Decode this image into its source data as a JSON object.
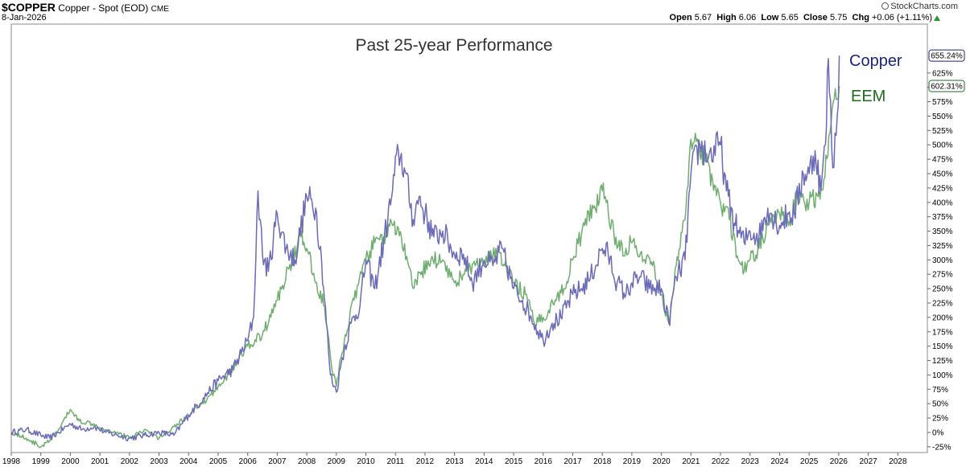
{
  "header": {
    "symbol": "$COPPER",
    "description": "Copper - Spot (EOD)",
    "exchange": "CME",
    "date": "8-Jan-2026",
    "brand": "StockCharts.com",
    "open_label": "Open",
    "open": "5.67",
    "high_label": "High",
    "high": "6.06",
    "low_label": "Low",
    "low": "5.65",
    "close_label": "Close",
    "close": "5.75",
    "chg_label": "Chg",
    "chg": "+0.06 (+1.11%)",
    "chg_direction": "up"
  },
  "chart_data": {
    "type": "line",
    "title": "Past 25-year Performance",
    "ylabel": "",
    "xlabel": "",
    "ylim": [
      -35,
      710
    ],
    "xlim": [
      1998,
      2029
    ],
    "x_ticks": [
      "1998",
      "1999",
      "2000",
      "2001",
      "2002",
      "2003",
      "2004",
      "2005",
      "2006",
      "2007",
      "2008",
      "2009",
      "2010",
      "2011",
      "2012",
      "2013",
      "2014",
      "2015",
      "2016",
      "2017",
      "2018",
      "2019",
      "2020",
      "2021",
      "2022",
      "2023",
      "2024",
      "2025",
      "2026",
      "2027",
      "2028"
    ],
    "y_ticks": [
      "-25%",
      "0%",
      "25%",
      "50%",
      "75%",
      "100%",
      "125%",
      "150%",
      "175%",
      "200%",
      "225%",
      "250%",
      "275%",
      "300%",
      "325%",
      "350%",
      "375%",
      "400%",
      "425%",
      "450%",
      "475%",
      "500%",
      "525%",
      "550%",
      "575%",
      "600%",
      "625%"
    ],
    "y_tick_values": [
      -25,
      0,
      25,
      50,
      75,
      100,
      125,
      150,
      175,
      200,
      225,
      250,
      275,
      300,
      325,
      350,
      375,
      400,
      425,
      450,
      475,
      500,
      525,
      550,
      575,
      600,
      625
    ],
    "series": [
      {
        "name": "Copper",
        "color": "#6b6bb8",
        "label_color": "#1a237e",
        "last_value_label": "655.24%",
        "last_value": 655.24,
        "x": [
          1998.0,
          1998.5,
          1999.0,
          1999.3,
          1999.6,
          2000.0,
          2000.4,
          2000.8,
          2001.2,
          2001.6,
          2002.0,
          2002.5,
          2003.0,
          2003.5,
          2004.0,
          2004.5,
          2005.0,
          2005.5,
          2006.0,
          2006.2,
          2006.35,
          2006.5,
          2006.7,
          2007.0,
          2007.3,
          2007.6,
          2008.0,
          2008.3,
          2008.5,
          2008.8,
          2009.0,
          2009.2,
          2009.5,
          2009.8,
          2010.0,
          2010.3,
          2010.6,
          2010.9,
          2011.1,
          2011.3,
          2011.6,
          2011.8,
          2012.0,
          2012.3,
          2012.6,
          2013.0,
          2013.3,
          2013.6,
          2014.0,
          2014.3,
          2014.6,
          2015.0,
          2015.3,
          2015.6,
          2016.0,
          2016.3,
          2016.6,
          2017.0,
          2017.3,
          2017.6,
          2018.0,
          2018.2,
          2018.5,
          2018.8,
          2019.0,
          2019.3,
          2019.6,
          2020.0,
          2020.25,
          2020.5,
          2020.8,
          2021.0,
          2021.3,
          2021.6,
          2022.0,
          2022.2,
          2022.5,
          2022.8,
          2023.0,
          2023.3,
          2023.6,
          2024.0,
          2024.3,
          2024.5,
          2024.8,
          2025.0,
          2025.2,
          2025.4,
          2025.55,
          2025.65,
          2025.8,
          2025.95,
          2026.02
        ],
        "values": [
          0,
          5,
          -5,
          -10,
          0,
          15,
          5,
          10,
          0,
          -5,
          -10,
          -5,
          0,
          -5,
          30,
          60,
          90,
          110,
          160,
          200,
          420,
          310,
          280,
          380,
          320,
          300,
          410,
          390,
          300,
          100,
          70,
          130,
          190,
          220,
          300,
          250,
          330,
          420,
          490,
          460,
          370,
          410,
          380,
          340,
          350,
          310,
          310,
          260,
          300,
          290,
          320,
          250,
          230,
          200,
          160,
          190,
          200,
          240,
          250,
          270,
          320,
          310,
          260,
          240,
          260,
          270,
          250,
          250,
          190,
          270,
          300,
          450,
          500,
          480,
          500,
          420,
          360,
          330,
          350,
          340,
          390,
          360,
          380,
          380,
          450,
          450,
          490,
          420,
          500,
          650,
          460,
          550,
          655.24
        ]
      },
      {
        "name": "EEM",
        "color": "#6fae6f",
        "label_color": "#1f6b1f",
        "last_value_label": "602.31%",
        "last_value": 602.31,
        "x": [
          1998.0,
          1998.5,
          1999.0,
          1999.3,
          1999.6,
          2000.0,
          2000.3,
          2000.8,
          2001.2,
          2001.6,
          2002.0,
          2002.5,
          2003.0,
          2003.5,
          2004.0,
          2004.5,
          2005.0,
          2005.5,
          2006.0,
          2006.5,
          2007.0,
          2007.5,
          2007.8,
          2008.0,
          2008.3,
          2008.6,
          2008.85,
          2009.0,
          2009.3,
          2009.6,
          2010.0,
          2010.3,
          2010.6,
          2010.9,
          2011.2,
          2011.6,
          2011.9,
          2012.2,
          2012.6,
          2013.0,
          2013.4,
          2013.7,
          2014.0,
          2014.4,
          2014.7,
          2015.0,
          2015.4,
          2015.7,
          2016.0,
          2016.4,
          2016.7,
          2017.0,
          2017.4,
          2017.7,
          2018.0,
          2018.1,
          2018.5,
          2018.8,
          2019.0,
          2019.4,
          2019.7,
          2020.0,
          2020.25,
          2020.5,
          2020.8,
          2021.0,
          2021.15,
          2021.5,
          2021.8,
          2022.0,
          2022.3,
          2022.6,
          2022.8,
          2023.0,
          2023.3,
          2023.6,
          2024.0,
          2024.3,
          2024.6,
          2025.0,
          2025.3,
          2025.5,
          2025.7,
          2025.85,
          2026.02
        ],
        "values": [
          0,
          -10,
          -25,
          -15,
          5,
          40,
          20,
          15,
          5,
          0,
          -10,
          5,
          -10,
          10,
          30,
          50,
          80,
          110,
          150,
          170,
          230,
          300,
          340,
          320,
          260,
          220,
          110,
          80,
          170,
          230,
          300,
          330,
          340,
          360,
          340,
          250,
          280,
          300,
          300,
          260,
          280,
          290,
          290,
          320,
          290,
          260,
          240,
          190,
          200,
          230,
          250,
          300,
          360,
          390,
          420,
          410,
          320,
          320,
          330,
          300,
          290,
          240,
          190,
          290,
          370,
          510,
          520,
          470,
          430,
          400,
          370,
          300,
          280,
          300,
          320,
          360,
          380,
          360,
          410,
          400,
          410,
          440,
          520,
          580,
          602.31
        ]
      }
    ]
  }
}
